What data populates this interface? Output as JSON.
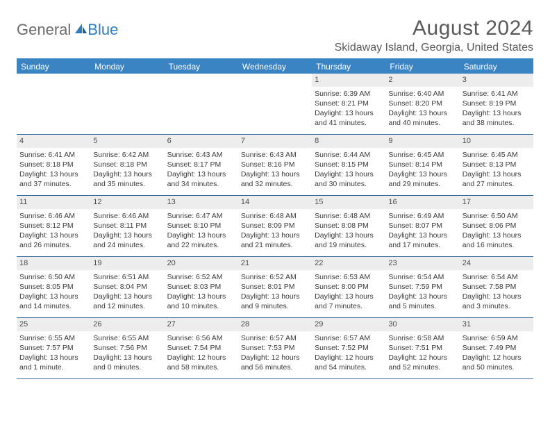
{
  "brand": {
    "word1": "General",
    "word2": "Blue"
  },
  "header": {
    "title": "August 2024",
    "location": "Skidaway Island, Georgia, United States"
  },
  "colors": {
    "header_bar": "#3b84c4",
    "date_bg": "#ededed",
    "row_border": "#2f6aa0",
    "text": "#3a3a3a",
    "title_text": "#5a5a5a",
    "logo_gray": "#6b6b6b",
    "logo_blue": "#2f7ec0"
  },
  "day_names": [
    "Sunday",
    "Monday",
    "Tuesday",
    "Wednesday",
    "Thursday",
    "Friday",
    "Saturday"
  ],
  "leading_blanks": 4,
  "days": [
    {
      "n": "1",
      "sunrise": "Sunrise: 6:39 AM",
      "sunset": "Sunset: 8:21 PM",
      "day1": "Daylight: 13 hours",
      "day2": "and 41 minutes."
    },
    {
      "n": "2",
      "sunrise": "Sunrise: 6:40 AM",
      "sunset": "Sunset: 8:20 PM",
      "day1": "Daylight: 13 hours",
      "day2": "and 40 minutes."
    },
    {
      "n": "3",
      "sunrise": "Sunrise: 6:41 AM",
      "sunset": "Sunset: 8:19 PM",
      "day1": "Daylight: 13 hours",
      "day2": "and 38 minutes."
    },
    {
      "n": "4",
      "sunrise": "Sunrise: 6:41 AM",
      "sunset": "Sunset: 8:18 PM",
      "day1": "Daylight: 13 hours",
      "day2": "and 37 minutes."
    },
    {
      "n": "5",
      "sunrise": "Sunrise: 6:42 AM",
      "sunset": "Sunset: 8:18 PM",
      "day1": "Daylight: 13 hours",
      "day2": "and 35 minutes."
    },
    {
      "n": "6",
      "sunrise": "Sunrise: 6:43 AM",
      "sunset": "Sunset: 8:17 PM",
      "day1": "Daylight: 13 hours",
      "day2": "and 34 minutes."
    },
    {
      "n": "7",
      "sunrise": "Sunrise: 6:43 AM",
      "sunset": "Sunset: 8:16 PM",
      "day1": "Daylight: 13 hours",
      "day2": "and 32 minutes."
    },
    {
      "n": "8",
      "sunrise": "Sunrise: 6:44 AM",
      "sunset": "Sunset: 8:15 PM",
      "day1": "Daylight: 13 hours",
      "day2": "and 30 minutes."
    },
    {
      "n": "9",
      "sunrise": "Sunrise: 6:45 AM",
      "sunset": "Sunset: 8:14 PM",
      "day1": "Daylight: 13 hours",
      "day2": "and 29 minutes."
    },
    {
      "n": "10",
      "sunrise": "Sunrise: 6:45 AM",
      "sunset": "Sunset: 8:13 PM",
      "day1": "Daylight: 13 hours",
      "day2": "and 27 minutes."
    },
    {
      "n": "11",
      "sunrise": "Sunrise: 6:46 AM",
      "sunset": "Sunset: 8:12 PM",
      "day1": "Daylight: 13 hours",
      "day2": "and 26 minutes."
    },
    {
      "n": "12",
      "sunrise": "Sunrise: 6:46 AM",
      "sunset": "Sunset: 8:11 PM",
      "day1": "Daylight: 13 hours",
      "day2": "and 24 minutes."
    },
    {
      "n": "13",
      "sunrise": "Sunrise: 6:47 AM",
      "sunset": "Sunset: 8:10 PM",
      "day1": "Daylight: 13 hours",
      "day2": "and 22 minutes."
    },
    {
      "n": "14",
      "sunrise": "Sunrise: 6:48 AM",
      "sunset": "Sunset: 8:09 PM",
      "day1": "Daylight: 13 hours",
      "day2": "and 21 minutes."
    },
    {
      "n": "15",
      "sunrise": "Sunrise: 6:48 AM",
      "sunset": "Sunset: 8:08 PM",
      "day1": "Daylight: 13 hours",
      "day2": "and 19 minutes."
    },
    {
      "n": "16",
      "sunrise": "Sunrise: 6:49 AM",
      "sunset": "Sunset: 8:07 PM",
      "day1": "Daylight: 13 hours",
      "day2": "and 17 minutes."
    },
    {
      "n": "17",
      "sunrise": "Sunrise: 6:50 AM",
      "sunset": "Sunset: 8:06 PM",
      "day1": "Daylight: 13 hours",
      "day2": "and 16 minutes."
    },
    {
      "n": "18",
      "sunrise": "Sunrise: 6:50 AM",
      "sunset": "Sunset: 8:05 PM",
      "day1": "Daylight: 13 hours",
      "day2": "and 14 minutes."
    },
    {
      "n": "19",
      "sunrise": "Sunrise: 6:51 AM",
      "sunset": "Sunset: 8:04 PM",
      "day1": "Daylight: 13 hours",
      "day2": "and 12 minutes."
    },
    {
      "n": "20",
      "sunrise": "Sunrise: 6:52 AM",
      "sunset": "Sunset: 8:03 PM",
      "day1": "Daylight: 13 hours",
      "day2": "and 10 minutes."
    },
    {
      "n": "21",
      "sunrise": "Sunrise: 6:52 AM",
      "sunset": "Sunset: 8:01 PM",
      "day1": "Daylight: 13 hours",
      "day2": "and 9 minutes."
    },
    {
      "n": "22",
      "sunrise": "Sunrise: 6:53 AM",
      "sunset": "Sunset: 8:00 PM",
      "day1": "Daylight: 13 hours",
      "day2": "and 7 minutes."
    },
    {
      "n": "23",
      "sunrise": "Sunrise: 6:54 AM",
      "sunset": "Sunset: 7:59 PM",
      "day1": "Daylight: 13 hours",
      "day2": "and 5 minutes."
    },
    {
      "n": "24",
      "sunrise": "Sunrise: 6:54 AM",
      "sunset": "Sunset: 7:58 PM",
      "day1": "Daylight: 13 hours",
      "day2": "and 3 minutes."
    },
    {
      "n": "25",
      "sunrise": "Sunrise: 6:55 AM",
      "sunset": "Sunset: 7:57 PM",
      "day1": "Daylight: 13 hours",
      "day2": "and 1 minute."
    },
    {
      "n": "26",
      "sunrise": "Sunrise: 6:55 AM",
      "sunset": "Sunset: 7:56 PM",
      "day1": "Daylight: 13 hours",
      "day2": "and 0 minutes."
    },
    {
      "n": "27",
      "sunrise": "Sunrise: 6:56 AM",
      "sunset": "Sunset: 7:54 PM",
      "day1": "Daylight: 12 hours",
      "day2": "and 58 minutes."
    },
    {
      "n": "28",
      "sunrise": "Sunrise: 6:57 AM",
      "sunset": "Sunset: 7:53 PM",
      "day1": "Daylight: 12 hours",
      "day2": "and 56 minutes."
    },
    {
      "n": "29",
      "sunrise": "Sunrise: 6:57 AM",
      "sunset": "Sunset: 7:52 PM",
      "day1": "Daylight: 12 hours",
      "day2": "and 54 minutes."
    },
    {
      "n": "30",
      "sunrise": "Sunrise: 6:58 AM",
      "sunset": "Sunset: 7:51 PM",
      "day1": "Daylight: 12 hours",
      "day2": "and 52 minutes."
    },
    {
      "n": "31",
      "sunrise": "Sunrise: 6:59 AM",
      "sunset": "Sunset: 7:49 PM",
      "day1": "Daylight: 12 hours",
      "day2": "and 50 minutes."
    }
  ]
}
